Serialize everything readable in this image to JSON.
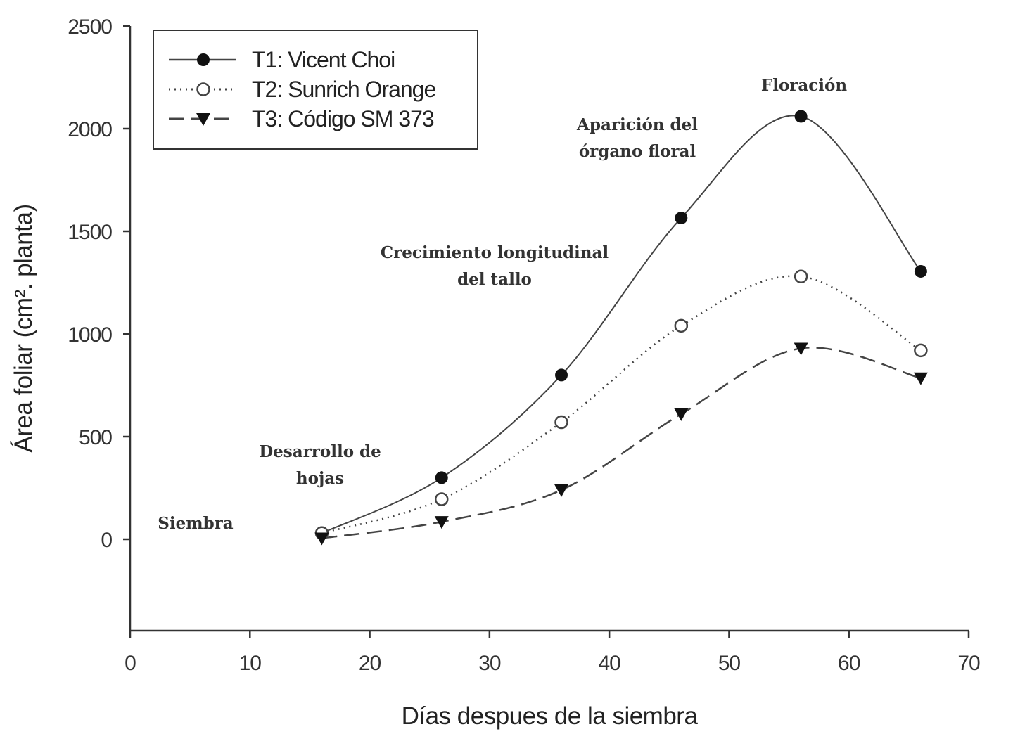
{
  "chart_data": {
    "type": "line",
    "title": "",
    "xlabel": "Días despues de la siembra",
    "ylabel": "Área foliar (cm². planta)",
    "xlim": [
      0,
      70
    ],
    "ylim": [
      -450,
      2500
    ],
    "xticks": [
      0,
      10,
      20,
      30,
      40,
      50,
      60,
      70
    ],
    "yticks": [
      0,
      500,
      1000,
      1500,
      2000,
      2500
    ],
    "grid": false,
    "legend_position": "top-left",
    "x": [
      16,
      26,
      36,
      46,
      56,
      66
    ],
    "series": [
      {
        "name": "T1: Vicent Choi",
        "marker": "filled-circle",
        "line": "solid",
        "values": [
          30,
          300,
          800,
          1565,
          2060,
          1305
        ]
      },
      {
        "name": "T2: Sunrich Orange",
        "marker": "open-circle",
        "line": "dotted",
        "values": [
          30,
          195,
          570,
          1040,
          1280,
          920
        ]
      },
      {
        "name": "T3: Código SM 373",
        "marker": "filled-triangle-down",
        "line": "dashed",
        "values": [
          5,
          85,
          240,
          610,
          930,
          785
        ]
      }
    ],
    "annotations": [
      {
        "lines": [
          "Siembra"
        ]
      },
      {
        "lines": [
          "Desarrollo de",
          "hojas"
        ]
      },
      {
        "lines": [
          "Crecimiento longitudinal",
          "del tallo"
        ]
      },
      {
        "lines": [
          "Aparición del",
          "órgano floral"
        ]
      },
      {
        "lines": [
          "Floración"
        ]
      }
    ]
  }
}
